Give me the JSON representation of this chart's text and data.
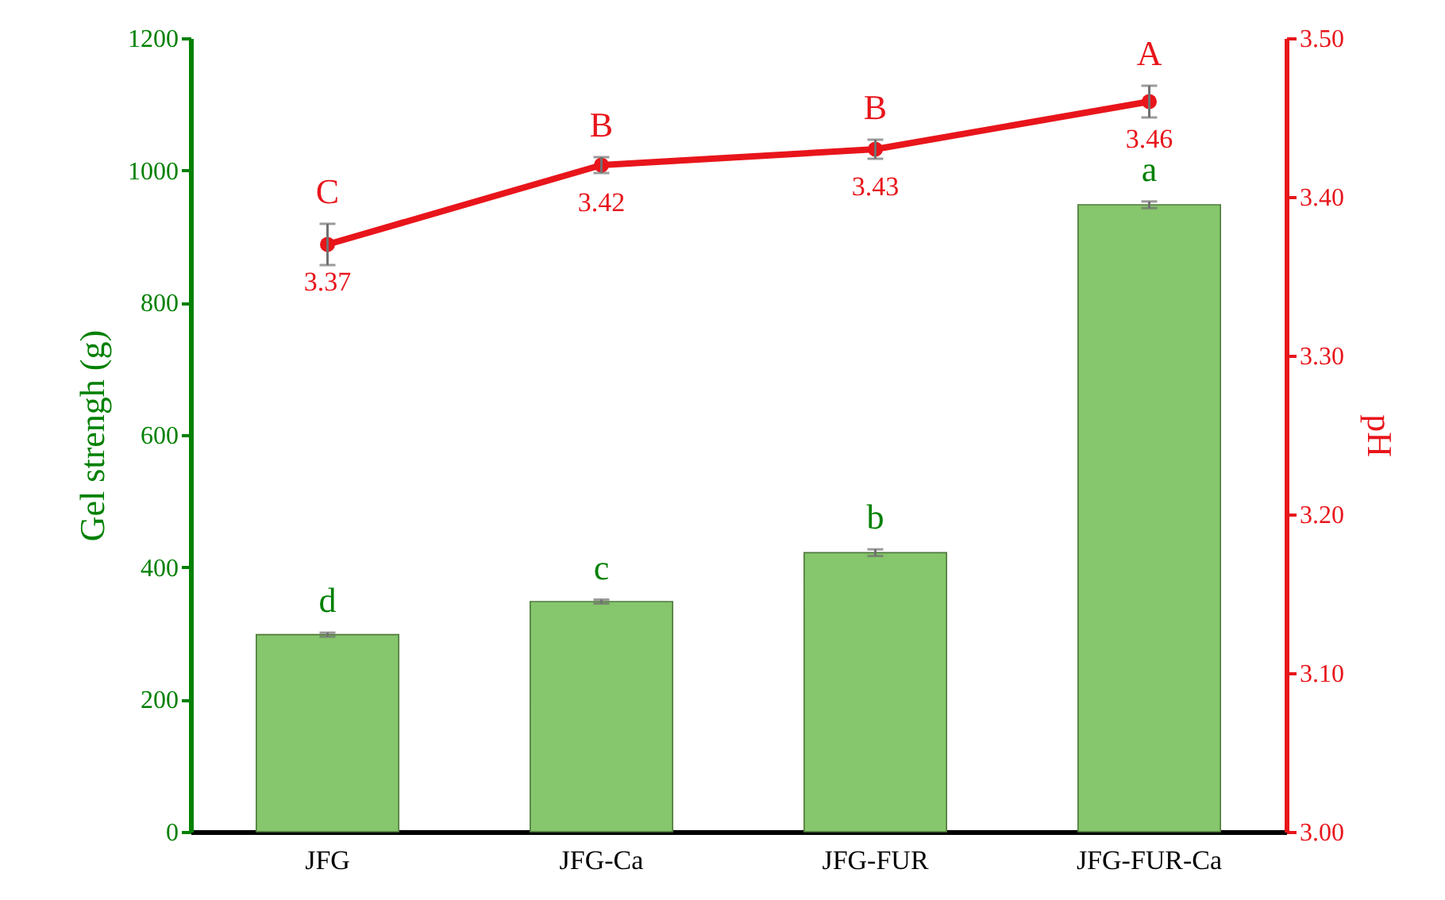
{
  "chart_data": {
    "type": "bar",
    "categories": [
      "JFG",
      "JFG-Ca",
      "JFG-FUR",
      "JFG-FUR-Ca"
    ],
    "ylabel": "Gel strengh (g)",
    "y2label": "pH",
    "ylim": [
      0,
      1200
    ],
    "yticks": [
      0,
      200,
      400,
      600,
      800,
      1000,
      1200
    ],
    "y2lim": [
      3.0,
      3.5
    ],
    "y2ticks": [
      {
        "value": 3.0,
        "label": "3.00"
      },
      {
        "value": 3.1,
        "label": "3.10"
      },
      {
        "value": 3.2,
        "label": "3.20"
      },
      {
        "value": 3.3,
        "label": "3.30"
      },
      {
        "value": 3.4,
        "label": "3.40"
      },
      {
        "value": 3.5,
        "label": "3.50"
      }
    ],
    "grid": false,
    "marker": "circle",
    "line_style": "solid",
    "series": [
      {
        "color": "#86c66c",
        "values": [
          298,
          348,
          422,
          948
        ],
        "errors": [
          3,
          3,
          5,
          5
        ]
      },
      {
        "type": "line",
        "axis": "y2",
        "color": "#e8151b",
        "values": [
          3.37,
          3.42,
          3.43,
          3.46
        ],
        "errors": [
          0.013,
          0.005,
          0.006,
          0.01
        ],
        "value_labels": [
          "3.37",
          "3.42",
          "3.43",
          "3.46"
        ]
      }
    ],
    "annotations": [
      "d",
      "c",
      "b",
      "a",
      "C",
      "B",
      "B",
      "A"
    ]
  }
}
